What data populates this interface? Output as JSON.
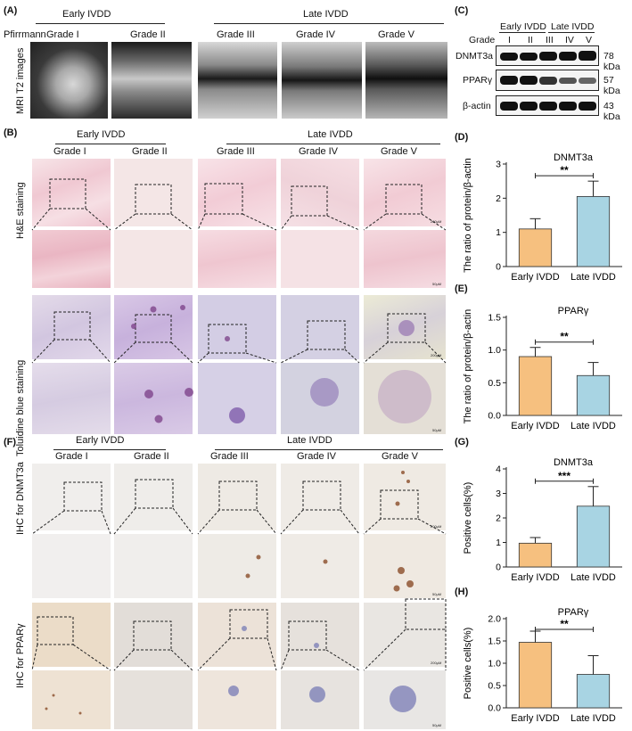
{
  "panels": {
    "A": "(A)",
    "B": "(B)",
    "C": "(C)",
    "D": "(D)",
    "E": "(E)",
    "F": "(F)",
    "G": "(G)",
    "H": "(H)"
  },
  "groups": {
    "early": "Early IVDD",
    "late": "Late IVDD"
  },
  "pfirrmann": "Pfirrmann",
  "grades": [
    "Grade I",
    "Grade  II",
    "Grade  III",
    "Grade IV",
    "Grade V"
  ],
  "row_labels": {
    "mri": "MRI T2 images",
    "he": "H&E staining",
    "tb": "Toluidine blue staining",
    "ihc_dnmt": "IHC for DNMT3a",
    "ihc_ppar": "IHC for PPARγ"
  },
  "scalebars": {
    "s200": "200μM",
    "s50": "50μM"
  },
  "blot": {
    "early": "Early IVDD",
    "late": "Late IVDD",
    "grade_label": "Grade",
    "grades": [
      "I",
      "II",
      "III",
      "IV",
      "V"
    ],
    "proteins": [
      "DNMT3a",
      "PPARγ",
      "β-actin"
    ],
    "sizes": [
      "78 kDa",
      "57 kDa",
      "43 kDa"
    ]
  },
  "colors": {
    "early": "#f6c07f",
    "late": "#a8d4e3",
    "he_bg": "#f3dce0",
    "tb_bg": "#d6c9e2",
    "ihc_bg": "#eeeae3"
  },
  "chart_data": [
    {
      "panel": "D",
      "type": "bar",
      "title": "DNMT3a",
      "ylabel": "The ratio of protein/β-actin",
      "xlabel": "",
      "categories": [
        "Early IVDD",
        "Late IVDD"
      ],
      "values": [
        1.1,
        2.05
      ],
      "errors": [
        0.3,
        0.45
      ],
      "ylim": [
        0,
        3
      ],
      "yticks": [
        "0",
        "1",
        "2",
        "3"
      ],
      "significance": "**"
    },
    {
      "panel": "E",
      "type": "bar",
      "title": "PPARγ",
      "ylabel": "The ratio of protein/β-actin",
      "xlabel": "",
      "categories": [
        "Early IVDD",
        "Late IVDD"
      ],
      "values": [
        0.9,
        0.61
      ],
      "errors": [
        0.14,
        0.2
      ],
      "ylim": [
        0,
        1.5
      ],
      "yticks": [
        "0.0",
        "0.5",
        "1.0",
        "1.5"
      ],
      "significance": "**"
    },
    {
      "panel": "G",
      "type": "bar",
      "title": "DNMT3a",
      "ylabel": "Positive cells(%)",
      "xlabel": "",
      "categories": [
        "Early IVDD",
        "Late IVDD"
      ],
      "values": [
        0.97,
        2.48
      ],
      "errors": [
        0.23,
        0.8
      ],
      "ylim": [
        0,
        4
      ],
      "yticks": [
        "0",
        "1",
        "2",
        "3",
        "4"
      ],
      "significance": "***"
    },
    {
      "panel": "H",
      "type": "bar",
      "title": "PPARγ",
      "ylabel": "Positive cells(%)",
      "xlabel": "",
      "categories": [
        "Early IVDD",
        "Late IVDD"
      ],
      "values": [
        1.47,
        0.75
      ],
      "errors": [
        0.25,
        0.42
      ],
      "ylim": [
        0,
        2.0
      ],
      "yticks": [
        "0.0",
        "0.5",
        "1.0",
        "1.5",
        "2.0"
      ],
      "significance": "**"
    }
  ]
}
